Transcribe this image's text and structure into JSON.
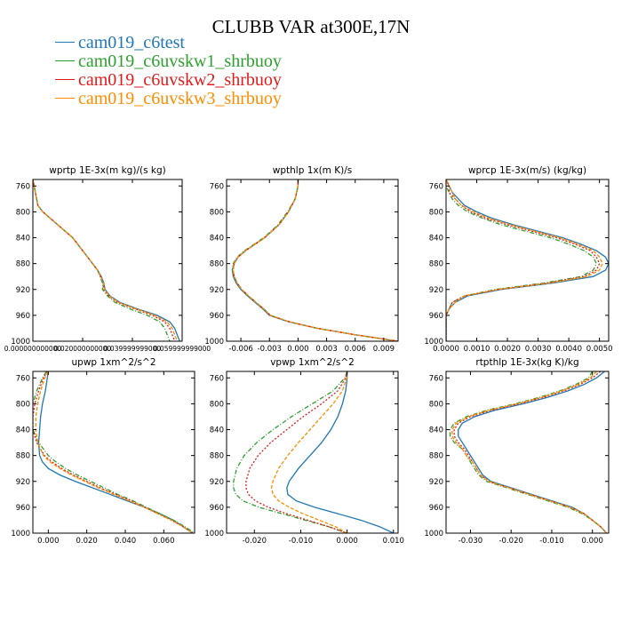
{
  "figure": {
    "title": "CLUBB VAR at300E,17N"
  },
  "legend": [
    {
      "label": "cam019_c6test",
      "color": "#1f77b4",
      "dash": ""
    },
    {
      "label": "cam019_c6uvskw1_shrbuoy",
      "color": "#2ca02c",
      "dash": "5,2,1,2"
    },
    {
      "label": "cam019_c6uvskw2_shrbuoy",
      "color": "#e31a1c",
      "dash": "2,2"
    },
    {
      "label": "cam019_c6uvskw3_shrbuoy",
      "color": "#ff8c00",
      "dash": "4,2"
    }
  ],
  "chart_data": [
    {
      "type": "line",
      "title": "wprtp  1E-3x(m kg)/(s kg)",
      "xlim": [
        0.0,
        0.06
      ],
      "ylim": [
        1000,
        750
      ],
      "xticks": [
        0.0,
        0.02,
        0.04,
        0.06
      ],
      "xtick_labels": [
        "0.000000000000",
        "0.020000000000",
        "0.039999999000",
        "0.059999999000"
      ],
      "yticks": [
        760,
        800,
        840,
        880,
        920,
        960,
        1000
      ],
      "y": [
        750,
        760,
        770,
        780,
        790,
        800,
        810,
        820,
        830,
        840,
        850,
        860,
        870,
        880,
        890,
        900,
        910,
        920,
        930,
        940,
        950,
        960,
        970,
        980,
        990,
        1000
      ],
      "series": [
        {
          "name": "cam019_c6test",
          "values": [
            0.0,
            0.0005,
            0.001,
            0.0015,
            0.002,
            0.004,
            0.007,
            0.01,
            0.013,
            0.016,
            0.018,
            0.02,
            0.022,
            0.024,
            0.026,
            0.0275,
            0.0285,
            0.029,
            0.031,
            0.035,
            0.042,
            0.05,
            0.055,
            0.057,
            0.058,
            0.059
          ]
        },
        {
          "name": "cam019_c6uvskw1_shrbuoy",
          "values": [
            0.0,
            0.0005,
            0.001,
            0.0015,
            0.002,
            0.004,
            0.007,
            0.01,
            0.013,
            0.016,
            0.018,
            0.02,
            0.022,
            0.024,
            0.026,
            0.027,
            0.028,
            0.028,
            0.03,
            0.033,
            0.039,
            0.046,
            0.051,
            0.053,
            0.054,
            0.055
          ]
        },
        {
          "name": "cam019_c6uvskw2_shrbuoy",
          "values": [
            0.0,
            0.0005,
            0.001,
            0.0015,
            0.002,
            0.004,
            0.007,
            0.01,
            0.013,
            0.016,
            0.018,
            0.02,
            0.022,
            0.024,
            0.026,
            0.0272,
            0.0282,
            0.0285,
            0.0305,
            0.034,
            0.041,
            0.048,
            0.053,
            0.055,
            0.056,
            0.057
          ]
        },
        {
          "name": "cam019_c6uvskw3_shrbuoy",
          "values": [
            0.0,
            0.0005,
            0.001,
            0.0015,
            0.002,
            0.004,
            0.007,
            0.01,
            0.013,
            0.016,
            0.018,
            0.02,
            0.022,
            0.024,
            0.026,
            0.0273,
            0.0283,
            0.0288,
            0.0308,
            0.0345,
            0.0415,
            0.049,
            0.054,
            0.056,
            0.057,
            0.058
          ]
        }
      ]
    },
    {
      "type": "line",
      "title": "wpthlp  1x(m K)/s",
      "xlim": [
        -0.0075,
        0.0105
      ],
      "ylim": [
        1000,
        750
      ],
      "xticks": [
        -0.006,
        -0.003,
        0.0,
        0.003,
        0.006,
        0.009
      ],
      "xtick_labels": [
        "-0.006",
        "-0.003",
        "0.000",
        "0.003",
        "0.006",
        "0.009"
      ],
      "yticks": [
        760,
        800,
        840,
        880,
        920,
        960,
        1000
      ],
      "y": [
        750,
        760,
        780,
        800,
        820,
        840,
        860,
        870,
        880,
        890,
        900,
        910,
        920,
        930,
        940,
        950,
        960,
        970,
        980,
        990,
        1000
      ],
      "series": [
        {
          "name": "cam019_c6test",
          "values": [
            0.0,
            0.0,
            -0.0003,
            -0.001,
            -0.002,
            -0.0035,
            -0.0055,
            -0.0063,
            -0.0067,
            -0.0069,
            -0.0068,
            -0.0065,
            -0.006,
            -0.0053,
            -0.0045,
            -0.0037,
            -0.003,
            -0.001,
            0.002,
            0.006,
            0.0105
          ]
        },
        {
          "name": "cam019_c6uvskw1_shrbuoy",
          "values": [
            0.0,
            0.0,
            -0.0003,
            -0.0011,
            -0.0021,
            -0.0036,
            -0.0056,
            -0.0064,
            -0.0068,
            -0.0069,
            -0.0067,
            -0.0064,
            -0.0059,
            -0.0052,
            -0.0044,
            -0.0036,
            -0.0029,
            -0.0009,
            0.002,
            0.006,
            0.0105
          ]
        },
        {
          "name": "cam019_c6uvskw2_shrbuoy",
          "values": [
            0.0,
            0.0,
            -0.0003,
            -0.001,
            -0.002,
            -0.0035,
            -0.0055,
            -0.0063,
            -0.0067,
            -0.0068,
            -0.0067,
            -0.0064,
            -0.0059,
            -0.0052,
            -0.0044,
            -0.0036,
            -0.0029,
            -0.0009,
            0.002,
            0.006,
            0.0105
          ]
        },
        {
          "name": "cam019_c6uvskw3_shrbuoy",
          "values": [
            0.0,
            0.0,
            -0.0003,
            -0.001,
            -0.002,
            -0.0035,
            -0.0055,
            -0.0063,
            -0.0067,
            -0.0068,
            -0.0067,
            -0.0064,
            -0.0059,
            -0.0052,
            -0.0044,
            -0.0036,
            -0.0029,
            -0.0009,
            0.002,
            0.006,
            0.0105
          ]
        }
      ]
    },
    {
      "type": "line",
      "title": "wprcp  1E-3x(m/s) (kg/kg)",
      "xlim": [
        0.0,
        0.0053
      ],
      "ylim": [
        1000,
        750
      ],
      "xticks": [
        0.0,
        0.001,
        0.002,
        0.003,
        0.004,
        0.005
      ],
      "xtick_labels": [
        "0.0000",
        "0.0010",
        "0.0020",
        "0.0030",
        "0.0040",
        "0.0050"
      ],
      "yticks": [
        760,
        800,
        840,
        880,
        920,
        960,
        1000
      ],
      "y": [
        750,
        760,
        770,
        780,
        790,
        800,
        810,
        820,
        830,
        840,
        850,
        860,
        870,
        880,
        890,
        900,
        910,
        920,
        930,
        940,
        950,
        960,
        970,
        980,
        990,
        1000
      ],
      "series": [
        {
          "name": "cam019_c6test",
          "values": [
            0.0,
            0.0001,
            0.0002,
            0.0004,
            0.0006,
            0.001,
            0.0015,
            0.0022,
            0.003,
            0.0038,
            0.0044,
            0.0049,
            0.0052,
            0.0053,
            0.0052,
            0.0048,
            0.0035,
            0.0018,
            0.0007,
            0.0003,
            0.0001,
            0.0,
            0.0,
            0.0,
            0.0,
            0.0
          ]
        },
        {
          "name": "cam019_c6uvskw1_shrbuoy",
          "values": [
            0.0,
            0.0,
            0.0001,
            0.0002,
            0.0004,
            0.0007,
            0.0012,
            0.0018,
            0.0026,
            0.0034,
            0.004,
            0.0045,
            0.0048,
            0.0049,
            0.0048,
            0.0044,
            0.0032,
            0.0016,
            0.0006,
            0.0002,
            0.0001,
            0.0,
            0.0,
            0.0,
            0.0,
            0.0
          ]
        },
        {
          "name": "cam019_c6uvskw2_shrbuoy",
          "values": [
            0.0,
            0.0001,
            0.0001,
            0.0003,
            0.0005,
            0.0008,
            0.0013,
            0.002,
            0.0028,
            0.0036,
            0.0042,
            0.0047,
            0.0049,
            0.005,
            0.0049,
            0.0045,
            0.0033,
            0.0017,
            0.0006,
            0.0002,
            0.0001,
            0.0,
            0.0,
            0.0,
            0.0,
            0.0
          ]
        },
        {
          "name": "cam019_c6uvskw3_shrbuoy",
          "values": [
            0.0,
            0.0001,
            0.0002,
            0.0003,
            0.0005,
            0.0009,
            0.0014,
            0.0021,
            0.0029,
            0.0037,
            0.0043,
            0.0048,
            0.005,
            0.0051,
            0.005,
            0.0046,
            0.0034,
            0.0017,
            0.0006,
            0.0003,
            0.0001,
            0.0,
            0.0,
            0.0,
            0.0,
            0.0
          ]
        }
      ]
    },
    {
      "type": "line",
      "title": "upwp  1xm^2/s^2",
      "xlim": [
        -0.008,
        0.076
      ],
      "ylim": [
        1000,
        750
      ],
      "xticks": [
        0.0,
        0.02,
        0.04,
        0.06
      ],
      "xtick_labels": [
        "0.000",
        "0.020",
        "0.040",
        "0.060"
      ],
      "yticks": [
        760,
        800,
        840,
        880,
        920,
        960,
        1000
      ],
      "y": [
        750,
        760,
        780,
        800,
        820,
        840,
        860,
        880,
        890,
        900,
        910,
        920,
        930,
        940,
        950,
        960,
        970,
        980,
        990,
        1000
      ],
      "series": [
        {
          "name": "cam019_c6test",
          "values": [
            0.0,
            -0.0005,
            -0.0015,
            -0.003,
            -0.004,
            -0.0045,
            -0.005,
            -0.0045,
            -0.003,
            0.0,
            0.006,
            0.014,
            0.023,
            0.032,
            0.041,
            0.05,
            0.058,
            0.065,
            0.07,
            0.075
          ]
        },
        {
          "name": "cam019_c6uvskw1_shrbuoy",
          "values": [
            -0.001,
            -0.003,
            -0.006,
            -0.008,
            -0.009,
            -0.008,
            -0.005,
            0.0,
            0.004,
            0.009,
            0.015,
            0.022,
            0.029,
            0.036,
            0.044,
            0.051,
            0.058,
            0.065,
            0.071,
            0.076
          ]
        },
        {
          "name": "cam019_c6uvskw2_shrbuoy",
          "values": [
            -0.0005,
            -0.0025,
            -0.005,
            -0.007,
            -0.008,
            -0.008,
            -0.006,
            -0.002,
            0.002,
            0.007,
            0.013,
            0.02,
            0.027,
            0.035,
            0.043,
            0.05,
            0.057,
            0.064,
            0.07,
            0.075
          ]
        },
        {
          "name": "cam019_c6uvskw3_shrbuoy",
          "values": [
            -0.0002,
            -0.0018,
            -0.004,
            -0.0055,
            -0.0065,
            -0.0065,
            -0.0055,
            -0.0025,
            0.001,
            0.006,
            0.012,
            0.019,
            0.026,
            0.034,
            0.042,
            0.05,
            0.057,
            0.064,
            0.07,
            0.075
          ]
        }
      ]
    },
    {
      "type": "line",
      "title": "vpwp  1xm^2/s^2",
      "xlim": [
        -0.026,
        0.011
      ],
      "ylim": [
        1000,
        750
      ],
      "xticks": [
        -0.02,
        -0.01,
        0.0,
        0.01
      ],
      "xtick_labels": [
        "-0.020",
        "-0.010",
        "0.000",
        "0.010"
      ],
      "yticks": [
        760,
        800,
        840,
        880,
        920,
        960,
        1000
      ],
      "y": [
        750,
        760,
        780,
        800,
        820,
        840,
        860,
        880,
        900,
        920,
        930,
        940,
        950,
        960,
        970,
        980,
        990,
        1000
      ],
      "series": [
        {
          "name": "cam019_c6test",
          "values": [
            0.0,
            0.0,
            -0.0003,
            -0.001,
            -0.002,
            -0.0035,
            -0.0055,
            -0.008,
            -0.0105,
            -0.0125,
            -0.013,
            -0.0128,
            -0.011,
            -0.007,
            -0.002,
            0.003,
            0.007,
            0.01
          ]
        },
        {
          "name": "cam019_c6uvskw1_shrbuoy",
          "values": [
            0.0,
            -0.0005,
            -0.003,
            -0.0075,
            -0.012,
            -0.016,
            -0.0195,
            -0.0222,
            -0.0238,
            -0.0245,
            -0.0245,
            -0.024,
            -0.0225,
            -0.019,
            -0.014,
            -0.009,
            -0.004,
            0.0
          ]
        },
        {
          "name": "cam019_c6uvskw2_shrbuoy",
          "values": [
            0.0,
            -0.0003,
            -0.002,
            -0.0055,
            -0.0095,
            -0.013,
            -0.0165,
            -0.0192,
            -0.021,
            -0.0218,
            -0.0218,
            -0.0213,
            -0.0198,
            -0.017,
            -0.013,
            -0.0085,
            -0.004,
            0.0
          ]
        },
        {
          "name": "cam019_c6uvskw3_shrbuoy",
          "values": [
            0.0,
            -0.0001,
            -0.001,
            -0.003,
            -0.0055,
            -0.008,
            -0.0105,
            -0.0128,
            -0.0148,
            -0.016,
            -0.0163,
            -0.016,
            -0.0148,
            -0.0125,
            -0.0095,
            -0.006,
            -0.0025,
            0.0
          ]
        }
      ]
    },
    {
      "type": "line",
      "title": "rtpthlp  1E-3x(kg K)/kg",
      "xlim": [
        -0.036,
        0.004
      ],
      "ylim": [
        1000,
        750
      ],
      "xticks": [
        -0.03,
        -0.02,
        -0.01,
        0.0
      ],
      "xtick_labels": [
        "-0.030",
        "-0.020",
        "-0.010",
        "0.000"
      ],
      "yticks": [
        760,
        800,
        840,
        880,
        920,
        960,
        1000
      ],
      "y": [
        750,
        760,
        770,
        780,
        790,
        800,
        810,
        820,
        830,
        840,
        850,
        860,
        870,
        880,
        890,
        900,
        910,
        920,
        930,
        940,
        950,
        960,
        970,
        980,
        990,
        1000
      ],
      "series": [
        {
          "name": "cam019_c6test",
          "values": [
            0.003,
            0.001,
            -0.002,
            -0.006,
            -0.011,
            -0.017,
            -0.024,
            -0.029,
            -0.032,
            -0.033,
            -0.033,
            -0.032,
            -0.031,
            -0.03,
            -0.029,
            -0.028,
            -0.027,
            -0.025,
            -0.02,
            -0.015,
            -0.01,
            -0.005,
            -0.002,
            0.0,
            0.002,
            0.0035
          ]
        },
        {
          "name": "cam019_c6uvskw1_shrbuoy",
          "values": [
            0.0,
            -0.001,
            -0.004,
            -0.008,
            -0.013,
            -0.019,
            -0.026,
            -0.031,
            -0.034,
            -0.035,
            -0.035,
            -0.034,
            -0.032,
            -0.031,
            -0.03,
            -0.029,
            -0.028,
            -0.026,
            -0.021,
            -0.016,
            -0.011,
            -0.006,
            -0.0025,
            0.0,
            0.002,
            0.0035
          ]
        },
        {
          "name": "cam019_c6uvskw2_shrbuoy",
          "values": [
            0.002,
            0.0,
            -0.003,
            -0.007,
            -0.012,
            -0.018,
            -0.025,
            -0.03,
            -0.033,
            -0.034,
            -0.034,
            -0.033,
            -0.0315,
            -0.0305,
            -0.0295,
            -0.0285,
            -0.0275,
            -0.0255,
            -0.0205,
            -0.0155,
            -0.0105,
            -0.0055,
            -0.002,
            0.0,
            0.002,
            0.0035
          ]
        },
        {
          "name": "cam019_c6uvskw3_shrbuoy",
          "values": [
            0.001,
            -0.0005,
            -0.0035,
            -0.0075,
            -0.0125,
            -0.0185,
            -0.0255,
            -0.0305,
            -0.0335,
            -0.0345,
            -0.0345,
            -0.0335,
            -0.032,
            -0.031,
            -0.0295,
            -0.0285,
            -0.0275,
            -0.0255,
            -0.0205,
            -0.0155,
            -0.0105,
            -0.0055,
            -0.002,
            0.0,
            0.002,
            0.0035
          ]
        }
      ]
    }
  ]
}
